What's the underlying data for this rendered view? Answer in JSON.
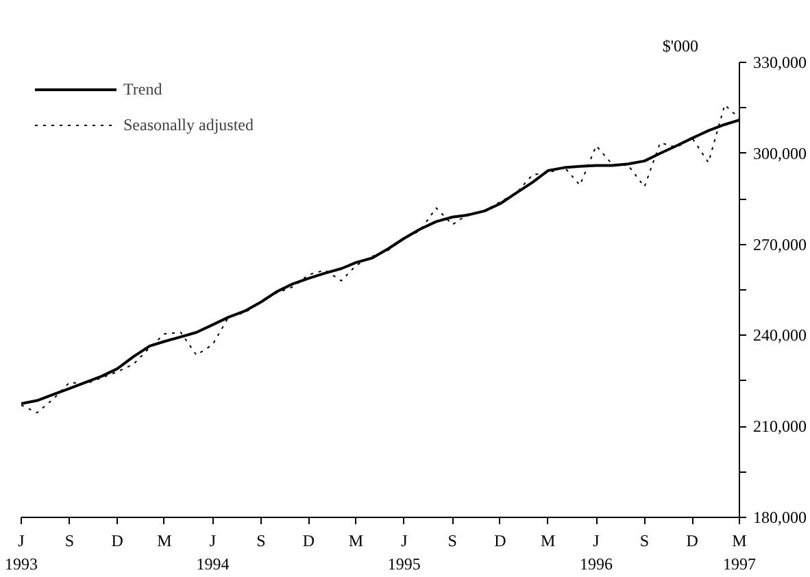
{
  "chart_data": {
    "type": "line",
    "ylabel": "$'000",
    "x": [
      "1993-06",
      "1993-07",
      "1993-08",
      "1993-09",
      "1993-10",
      "1993-11",
      "1993-12",
      "1994-01",
      "1994-02",
      "1994-03",
      "1994-04",
      "1994-05",
      "1994-06",
      "1994-07",
      "1994-08",
      "1994-09",
      "1994-10",
      "1994-11",
      "1994-12",
      "1995-01",
      "1995-02",
      "1995-03",
      "1995-04",
      "1995-05",
      "1995-06",
      "1995-07",
      "1995-08",
      "1995-09",
      "1995-10",
      "1995-11",
      "1995-12",
      "1996-01",
      "1996-02",
      "1996-03",
      "1996-04",
      "1996-05",
      "1996-06",
      "1996-07",
      "1996-08",
      "1996-09",
      "1996-10",
      "1996-11",
      "1996-12",
      "1997-01",
      "1997-02",
      "1997-03"
    ],
    "series": [
      {
        "name": "Trend",
        "color": "#000000",
        "line_style": "solid",
        "values": [
          217500,
          218500,
          220500,
          222500,
          224500,
          226500,
          229000,
          233000,
          236500,
          238000,
          239500,
          241000,
          243500,
          246000,
          248000,
          251000,
          254400,
          257000,
          258800,
          260500,
          262000,
          264000,
          265500,
          268500,
          272000,
          275000,
          277500,
          279000,
          279700,
          281000,
          283400,
          287000,
          290500,
          294300,
          295300,
          295700,
          296000,
          296000,
          296500,
          297500,
          300000,
          302500,
          305000,
          307500,
          309500,
          311000
        ]
      },
      {
        "name": "Seasonally adjusted",
        "color": "#000000",
        "line_style": "dotted",
        "values": [
          217000,
          214500,
          219000,
          224500,
          224000,
          226000,
          228000,
          230500,
          236000,
          240500,
          241000,
          233500,
          237000,
          246000,
          247500,
          251000,
          254000,
          256000,
          260000,
          261500,
          258000,
          263000,
          266000,
          268000,
          272000,
          274500,
          282000,
          276500,
          280000,
          281000,
          284000,
          287000,
          293000,
          293500,
          295500,
          289500,
          302500,
          296500,
          296000,
          289000,
          303500,
          302000,
          305000,
          297000,
          316000,
          311500
        ]
      }
    ],
    "xlim": [
      "1993-06",
      "1997-03"
    ],
    "xticks": [
      {
        "value": "1993-06",
        "label": "J\n1993"
      },
      {
        "value": "1993-09",
        "label": "S"
      },
      {
        "value": "1993-12",
        "label": "D"
      },
      {
        "value": "1994-03",
        "label": "M"
      },
      {
        "value": "1994-06",
        "label": "J\n1994"
      },
      {
        "value": "1994-09",
        "label": "S"
      },
      {
        "value": "1994-12",
        "label": "D"
      },
      {
        "value": "1995-03",
        "label": "M"
      },
      {
        "value": "1995-06",
        "label": "J\n1995"
      },
      {
        "value": "1995-09",
        "label": "S"
      },
      {
        "value": "1995-12",
        "label": "D"
      },
      {
        "value": "1996-03",
        "label": "M"
      },
      {
        "value": "1996-06",
        "label": "J\n1996"
      },
      {
        "value": "1996-09",
        "label": "S"
      },
      {
        "value": "1996-12",
        "label": "D"
      },
      {
        "value": "1997-03",
        "label": "M\n1997"
      }
    ],
    "ylim": [
      180000,
      330000
    ],
    "yticks": [
      {
        "value": 180000,
        "label": "180,000"
      },
      {
        "value": 195000,
        "label": null
      },
      {
        "value": 210000,
        "label": "210,000"
      },
      {
        "value": 225000,
        "label": null
      },
      {
        "value": 240000,
        "label": "240,000"
      },
      {
        "value": 255000,
        "label": null
      },
      {
        "value": 270000,
        "label": "270,000"
      },
      {
        "value": 285000,
        "label": null
      },
      {
        "value": 300000,
        "label": "300,000"
      },
      {
        "value": 315000,
        "label": null
      },
      {
        "value": 330000,
        "label": "330,000"
      }
    ],
    "grid": false,
    "legend": "top left"
  }
}
